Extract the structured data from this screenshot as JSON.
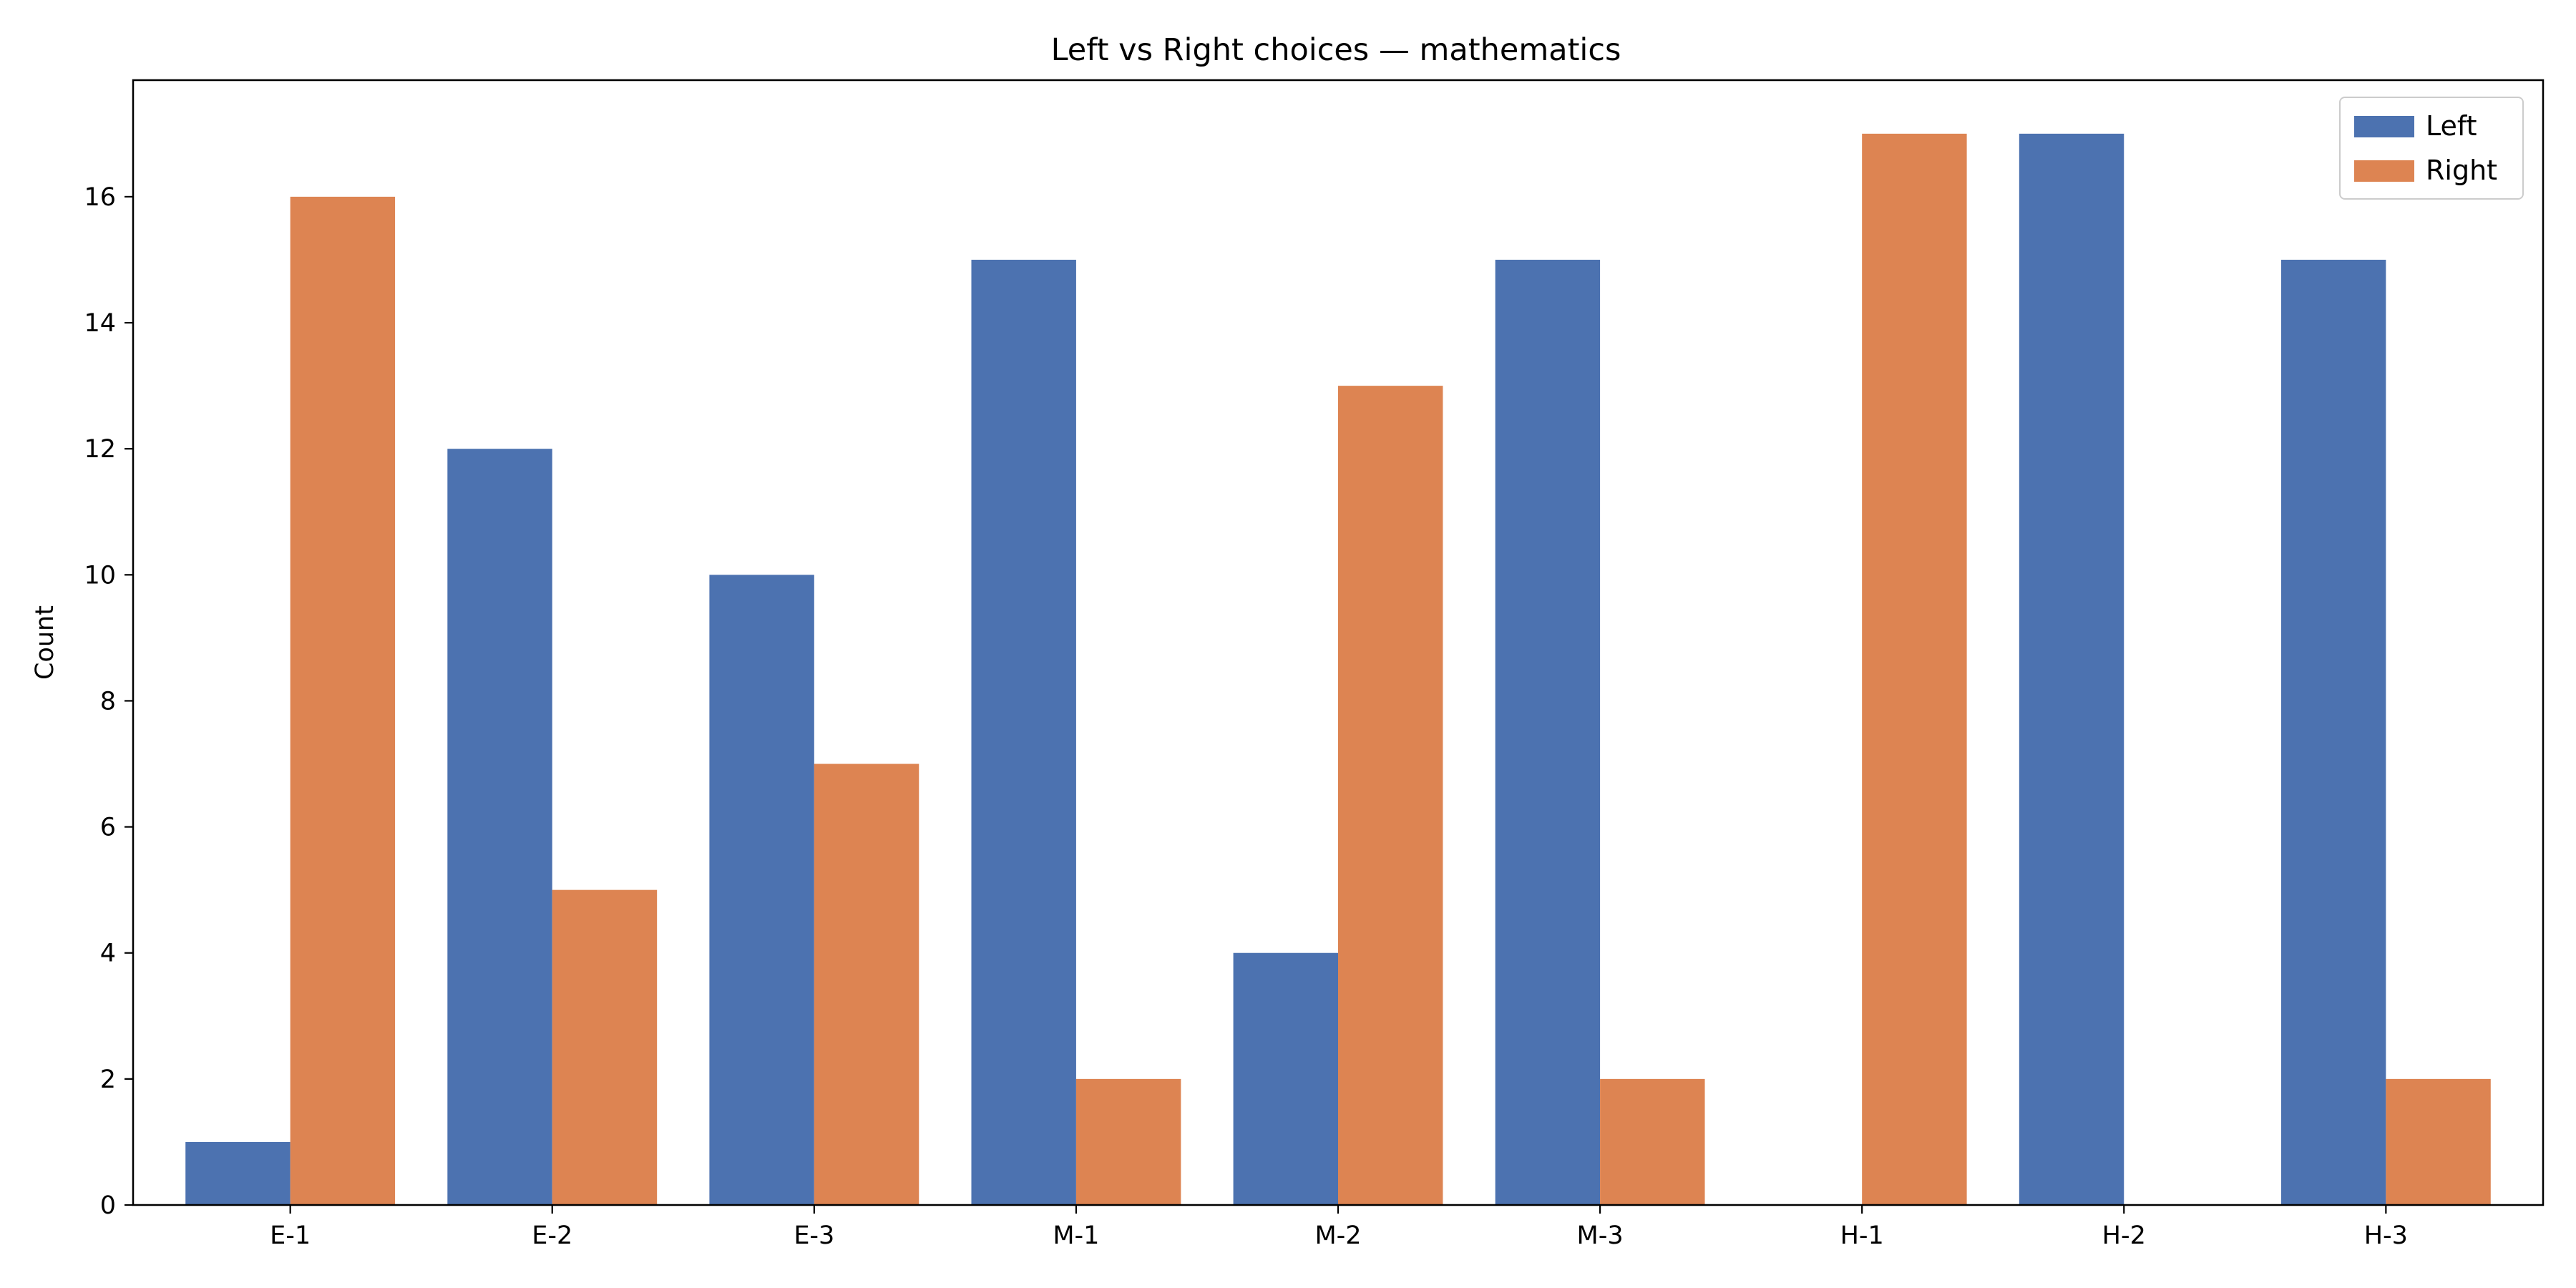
{
  "chart_data": {
    "type": "bar",
    "title": "Left vs Right choices — mathematics",
    "xlabel": "",
    "ylabel": "Count",
    "categories": [
      "E-1",
      "E-2",
      "E-3",
      "M-1",
      "M-2",
      "M-3",
      "H-1",
      "H-2",
      "H-3"
    ],
    "series": [
      {
        "name": "Left",
        "color": "#4c72b0",
        "values": [
          1,
          12,
          10,
          15,
          4,
          15,
          0,
          17,
          15
        ]
      },
      {
        "name": "Right",
        "color": "#dd8452",
        "values": [
          16,
          5,
          7,
          2,
          13,
          2,
          17,
          0,
          2
        ]
      }
    ],
    "ylim": [
      0,
      17.85
    ],
    "yticks": [
      0,
      2,
      4,
      6,
      8,
      10,
      12,
      14,
      16
    ],
    "grid": false,
    "legend": "top-right"
  }
}
